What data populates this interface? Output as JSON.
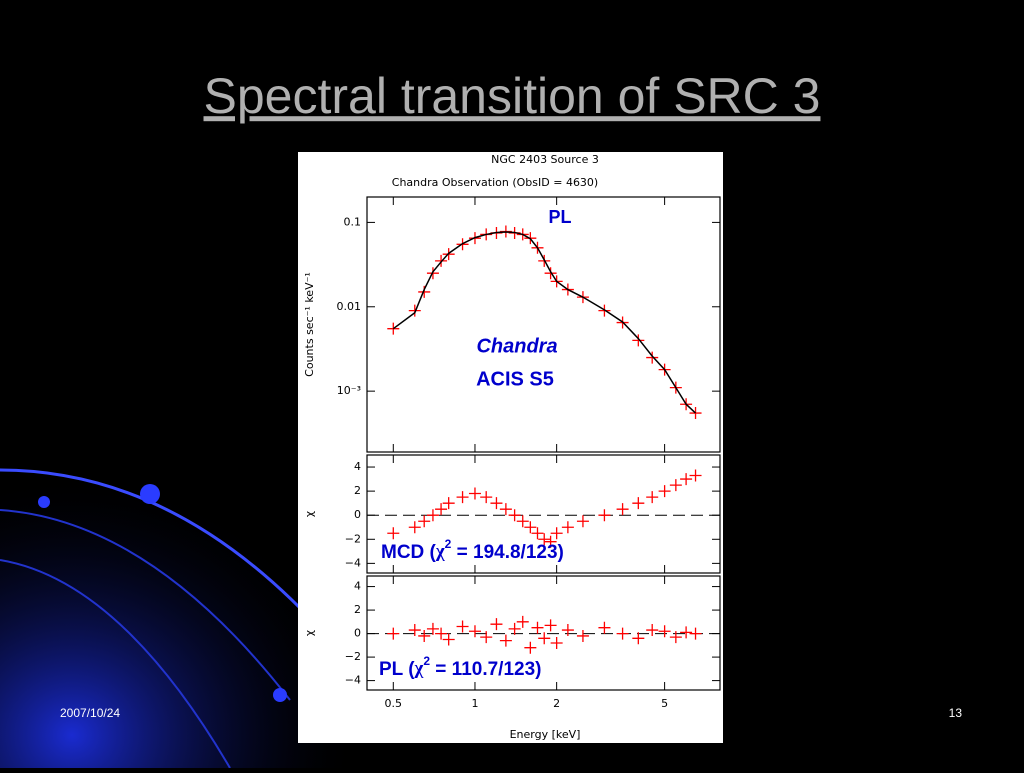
{
  "title": "Spectral transition of SRC 3",
  "footer_date": "2007/10/24",
  "page_number": "13",
  "annotations": {
    "model": "PL",
    "instrument_line1": "Chandra",
    "instrument_line2": "ACIS S5",
    "mcd_fit": {
      "prefix": "MCD (",
      "symbol": "χ",
      "sup": "2",
      "suffix": " = 194.8/123)"
    },
    "pl_fit": {
      "prefix": "PL (",
      "symbol": "χ",
      "sup": "2",
      "suffix": " = 110.7/123)"
    }
  },
  "chart_data": [
    {
      "type": "scatter",
      "title": "NGC 2403 Source 3",
      "subtitle": "Chandra Observation (ObsID = 4630)",
      "ylabel": "Counts sec⁻¹ keV⁻¹",
      "xlog": true,
      "ylog": true,
      "xlim": [
        0.4,
        8
      ],
      "ylim": [
        0.00019,
        0.2
      ],
      "yticks": [
        0.1,
        0.01,
        {
          "value": 0.001,
          "label": "10⁻³"
        }
      ],
      "x": [
        0.5,
        0.6,
        0.65,
        0.7,
        0.75,
        0.8,
        0.9,
        1.0,
        1.1,
        1.2,
        1.3,
        1.4,
        1.5,
        1.6,
        1.7,
        1.8,
        1.9,
        2.0,
        2.2,
        2.5,
        3.0,
        3.5,
        4.0,
        4.5,
        5.0,
        5.5,
        6.0,
        6.5
      ],
      "series": [
        {
          "color": "#ff0000",
          "values": [
            0.0055,
            0.009,
            0.015,
            0.025,
            0.035,
            0.042,
            0.055,
            0.065,
            0.072,
            0.075,
            0.078,
            0.075,
            0.072,
            0.065,
            0.05,
            0.035,
            0.025,
            0.02,
            0.016,
            0.013,
            0.009,
            0.0065,
            0.004,
            0.0025,
            0.0018,
            0.0011,
            0.0007,
            0.00055
          ]
        },
        {
          "color": "#000000",
          "line": true,
          "values": [
            0.0055,
            0.0085,
            0.016,
            0.026,
            0.034,
            0.043,
            0.056,
            0.066,
            0.072,
            0.076,
            0.077,
            0.076,
            0.072,
            0.064,
            0.05,
            0.036,
            0.026,
            0.02,
            0.016,
            0.013,
            0.0092,
            0.0066,
            0.0042,
            0.0026,
            0.0018,
            0.0011,
            0.0007,
            0.00055
          ]
        }
      ]
    },
    {
      "type": "scatter",
      "ylabel": "χ",
      "xlog": true,
      "xlim": [
        0.4,
        8
      ],
      "ylim": [
        -4.8,
        5
      ],
      "yticks": [
        4,
        2,
        0,
        {
          "value": -2,
          "label": "−2"
        },
        {
          "value": -4,
          "label": "−4"
        }
      ],
      "reference_line": 0,
      "x": [
        0.5,
        0.6,
        0.65,
        0.7,
        0.75,
        0.8,
        0.9,
        1.0,
        1.1,
        1.2,
        1.3,
        1.4,
        1.5,
        1.6,
        1.7,
        1.8,
        1.9,
        2.0,
        2.2,
        2.5,
        3.0,
        3.5,
        4.0,
        4.5,
        5.0,
        5.5,
        6.0,
        6.5
      ],
      "series": [
        {
          "color": "#ff0000",
          "values": [
            -1.5,
            -1,
            -0.5,
            0,
            0.5,
            1,
            1.5,
            1.8,
            1.5,
            1,
            0.5,
            0,
            -0.5,
            -1,
            -1.5,
            -2,
            -2.2,
            -1.5,
            -1,
            -0.5,
            0,
            0.5,
            1,
            1.5,
            2,
            2.5,
            3,
            3.3
          ]
        }
      ]
    },
    {
      "type": "scatter",
      "ylabel": "χ",
      "xlabel": "Energy [keV]",
      "xlog": true,
      "xlim": [
        0.4,
        8
      ],
      "ylim": [
        -4.8,
        4.9
      ],
      "xticks": [
        0.5,
        1,
        2,
        5
      ],
      "yticks": [
        4,
        2,
        0,
        {
          "value": -2,
          "label": "−2"
        },
        {
          "value": -4,
          "label": "−4"
        }
      ],
      "reference_line": 0,
      "x": [
        0.5,
        0.6,
        0.65,
        0.7,
        0.75,
        0.8,
        0.9,
        1.0,
        1.1,
        1.2,
        1.3,
        1.4,
        1.5,
        1.6,
        1.7,
        1.8,
        1.9,
        2.0,
        2.2,
        2.5,
        3.0,
        3.5,
        4.0,
        4.5,
        5.0,
        5.5,
        6.0,
        6.5
      ],
      "series": [
        {
          "color": "#ff0000",
          "values": [
            0,
            0.3,
            -0.2,
            0.4,
            0,
            -0.5,
            0.6,
            0.2,
            -0.3,
            0.8,
            -0.6,
            0.4,
            1,
            -1.2,
            0.5,
            -0.4,
            0.7,
            -0.8,
            0.3,
            -0.2,
            0.5,
            0,
            -0.4,
            0.3,
            0.2,
            -0.3,
            0.1,
            0
          ]
        }
      ]
    }
  ]
}
